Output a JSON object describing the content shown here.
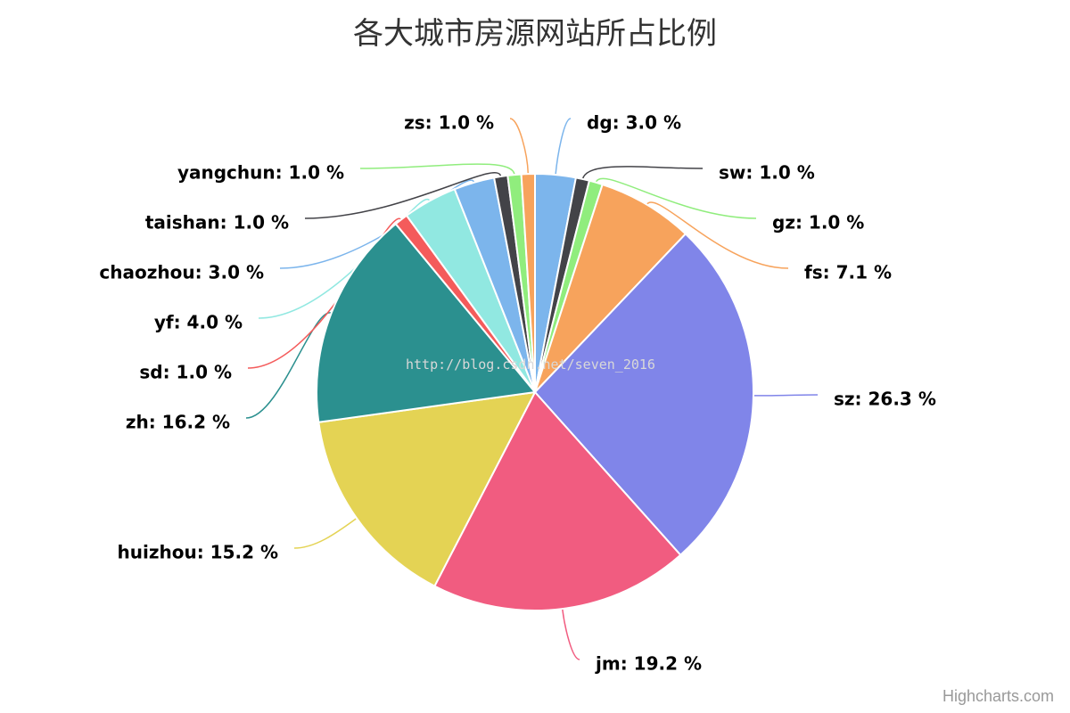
{
  "chart_data": {
    "type": "pie",
    "title": "各大城市房源网站所占比例",
    "label_format": "{name}: {value} %",
    "slices": [
      {
        "name": "dg",
        "value": 3.0,
        "color": "#7cb5ec"
      },
      {
        "name": "sw",
        "value": 1.0,
        "color": "#434348"
      },
      {
        "name": "gz",
        "value": 1.0,
        "color": "#90ed7d"
      },
      {
        "name": "fs",
        "value": 7.1,
        "color": "#f7a35c"
      },
      {
        "name": "sz",
        "value": 26.3,
        "color": "#8085e9"
      },
      {
        "name": "jm",
        "value": 19.2,
        "color": "#f15c80"
      },
      {
        "name": "huizhou",
        "value": 15.2,
        "color": "#e4d354"
      },
      {
        "name": "zh",
        "value": 16.2,
        "color": "#2b908f"
      },
      {
        "name": "sd",
        "value": 1.0,
        "color": "#f45b5b"
      },
      {
        "name": "yf",
        "value": 4.0,
        "color": "#91e8e1"
      },
      {
        "name": "chaozhou",
        "value": 3.0,
        "color": "#7cb5ec"
      },
      {
        "name": "taishan",
        "value": 1.0,
        "color": "#434348"
      },
      {
        "name": "yangchun",
        "value": 1.0,
        "color": "#90ed7d"
      },
      {
        "name": "zs",
        "value": 1.0,
        "color": "#f7a35c"
      }
    ]
  },
  "watermark": "http://blog.csdn.net/seven_2016",
  "credits": "Highcharts.com"
}
